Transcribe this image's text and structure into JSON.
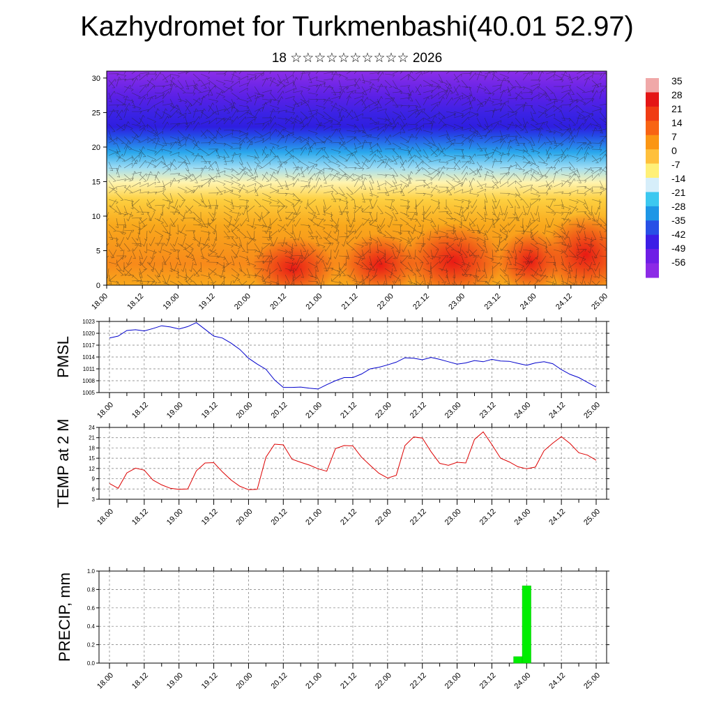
{
  "title": "Kazhydromet for Turkmenbashi(40.01 52.97)",
  "subtitle": "18 ☆☆☆☆☆☆☆☆☆☆ 2026",
  "time_labels": [
    "18.00",
    "18.12",
    "19.00",
    "19.12",
    "20.00",
    "20.12",
    "21.00",
    "21.12",
    "22.00",
    "22.12",
    "23.00",
    "23.12",
    "24.00",
    "24.12",
    "25.00"
  ],
  "colorbar": {
    "labels": [
      "35",
      "28",
      "21",
      "14",
      "7",
      "0",
      "-7",
      "-14",
      "-21",
      "-28",
      "-35",
      "-42",
      "-49",
      "-56"
    ],
    "colors": [
      "#f0a8a8",
      "#e41616",
      "#f03c14",
      "#f86414",
      "#fb9614",
      "#ffc03c",
      "#fff078",
      "#d6eefa",
      "#3cc8f0",
      "#1e96e6",
      "#2850e6",
      "#3c1ee6",
      "#6e1ee6",
      "#8c2ae6"
    ]
  },
  "chart_data": [
    {
      "type": "heatmap",
      "title": "",
      "ylabel": "",
      "yticks": [
        0,
        5,
        10,
        15,
        20,
        25,
        30
      ],
      "ylim": [
        0,
        31
      ],
      "x_range": [
        "18.00",
        "25.00"
      ],
      "description_values": "temperature field by height: warm (7 to 28) near 0-14, cold (-35 to -56) above 20"
    },
    {
      "type": "line",
      "ylabel": "PMSL",
      "yticks": [
        1005,
        1008,
        1011,
        1014,
        1017,
        1020,
        1023
      ],
      "ylim": [
        1005,
        1023
      ],
      "color": "#0000cc",
      "x_hours": [
        0,
        3,
        6,
        9,
        12,
        15,
        18,
        21,
        24,
        27,
        30,
        33,
        36,
        39,
        42,
        45,
        48,
        51,
        54,
        57,
        60,
        63,
        66,
        69,
        72,
        75,
        78,
        81,
        84,
        87,
        90,
        93,
        96,
        99,
        102,
        105,
        108,
        111,
        114,
        117,
        120,
        123,
        126,
        129,
        132,
        135,
        138,
        141,
        144,
        147,
        150,
        153,
        156,
        159,
        162,
        165,
        168
      ],
      "values": [
        1018.8,
        1019.3,
        1020.7,
        1020.9,
        1020.6,
        1021.2,
        1021.9,
        1021.6,
        1021.1,
        1021.7,
        1022.7,
        1021,
        1019.3,
        1018.8,
        1017.5,
        1015.9,
        1013.7,
        1012.2,
        1010.9,
        1008.2,
        1006.3,
        1006.3,
        1006.4,
        1006.1,
        1005.9,
        1007,
        1008,
        1008.8,
        1008.8,
        1009.7,
        1011,
        1011.4,
        1012,
        1012.7,
        1013.8,
        1013.7,
        1013.3,
        1013.9,
        1013.4,
        1012.8,
        1012.2,
        1012.5,
        1013.1,
        1012.8,
        1013.4,
        1013,
        1012.9,
        1012.4,
        1011.9,
        1012.5,
        1012.8,
        1012.3,
        1010.8,
        1009.6,
        1008.8,
        1007.6,
        1006.4
      ]
    },
    {
      "type": "line",
      "ylabel": "TEMP at 2 M",
      "yticks": [
        3,
        6,
        9,
        12,
        15,
        18,
        21,
        24
      ],
      "ylim": [
        3,
        24
      ],
      "color": "#dd0000",
      "x_hours": [
        0,
        3,
        6,
        9,
        12,
        15,
        18,
        21,
        24,
        27,
        30,
        33,
        36,
        39,
        42,
        45,
        48,
        51,
        54,
        57,
        60,
        63,
        66,
        69,
        72,
        75,
        78,
        81,
        84,
        87,
        90,
        93,
        96,
        99,
        102,
        105,
        108,
        111,
        114,
        117,
        120,
        123,
        126,
        129,
        132,
        135,
        138,
        141,
        144,
        147,
        150,
        153,
        156,
        159,
        162,
        165,
        168
      ],
      "values": [
        7.6,
        6.2,
        10.7,
        12.1,
        11.5,
        8.6,
        7.2,
        6.2,
        5.9,
        6,
        11.3,
        13.6,
        13.7,
        11,
        8.6,
        6.8,
        5.8,
        5.9,
        15.3,
        19.1,
        18.9,
        14.7,
        13.8,
        13,
        11.9,
        11.2,
        17.8,
        18.7,
        18.6,
        15.3,
        12.9,
        10.6,
        9.2,
        10,
        18.7,
        21.2,
        20.9,
        16.9,
        13.5,
        12.9,
        13.8,
        13.6,
        20.5,
        22.7,
        19,
        15,
        13.9,
        12.5,
        11.9,
        12.4,
        17.2,
        19.4,
        21.3,
        19.3,
        16.6,
        15.9,
        14.4
      ]
    },
    {
      "type": "bar",
      "ylabel": "PRECIP, mm",
      "yticks": [
        "0.0",
        "0.2",
        "0.4",
        "0.6",
        "0.8",
        "1.0"
      ],
      "ylim": [
        0,
        1.0
      ],
      "color": "#00ee00",
      "x_hours": [
        141,
        144
      ],
      "values": [
        0.07,
        0.84
      ]
    }
  ]
}
